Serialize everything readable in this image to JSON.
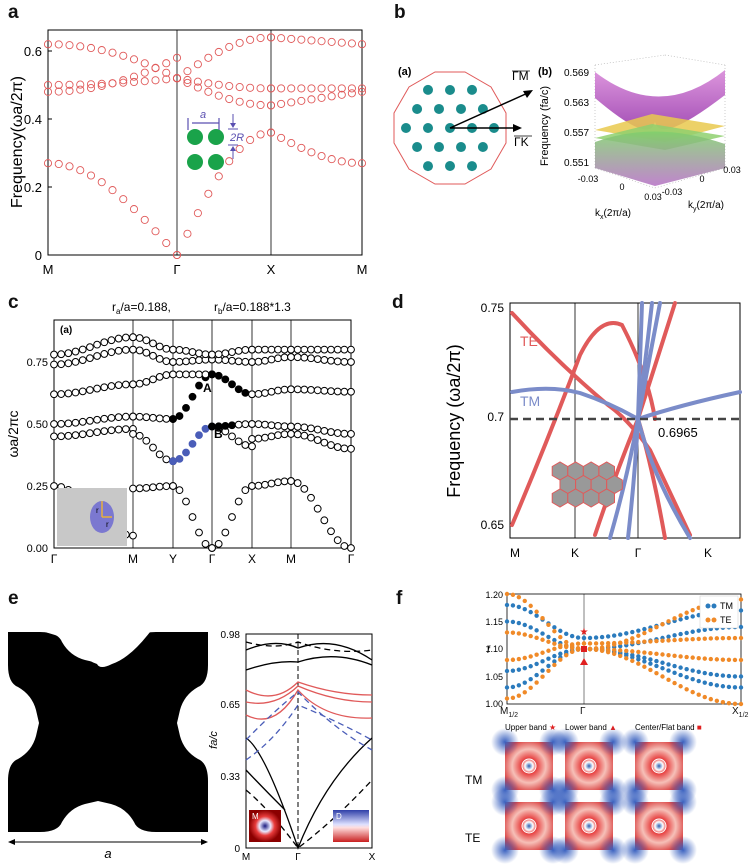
{
  "panels": {
    "a": {
      "letter": "a",
      "ylabel": "Frequency(ωa/2π)",
      "yticks": [
        "0",
        "0.2",
        "0.4",
        "0.6"
      ],
      "xticks": [
        "M",
        "Γ",
        "X",
        "M"
      ],
      "inset": {
        "a_label": "a",
        "r_label": "2R"
      }
    },
    "b": {
      "letter": "b",
      "sub_a": "(a)",
      "sub_b": "(b)",
      "arrow_gm": "ΓM",
      "arrow_gk": "ΓK",
      "zlabel": "Frequency (fa/c)",
      "zticks": [
        "0.569",
        "0.563",
        "0.557",
        "0.551"
      ],
      "kx_label": "k",
      "kx_sub": "x",
      "kx_unit": "(2π/a)",
      "ky_label": "k",
      "ky_sub": "y",
      "ky_unit": "(2π/a)",
      "kx_ticks": [
        "-0.03",
        "0",
        "0.03"
      ],
      "ky_ticks": [
        "-0.03",
        "0",
        "0.03"
      ]
    },
    "c": {
      "letter": "c",
      "ra_label": "r",
      "ra_sub": "a",
      "ra_value": "/a=0.188,",
      "rb_label": "r",
      "rb_sub": "b",
      "rb_value": "/a=0.188*1.3",
      "sub_a": "(a)",
      "ylabel": "ωa/2πc",
      "yticks": [
        "0.00",
        "0.25",
        "0.50",
        "0.75"
      ],
      "xticks": [
        "Γ",
        "M",
        "Y",
        "Γ",
        "X",
        "M",
        "Γ"
      ],
      "point_a": "A",
      "point_b": "B",
      "inset_ra": "r",
      "inset_rb": "r"
    },
    "d": {
      "letter": "d",
      "ylabel": "Frequency (ωa/2π)",
      "yticks": [
        "0.65",
        "0.7",
        "0.75"
      ],
      "xticks": [
        "M",
        "K",
        "Γ",
        "K"
      ],
      "te_label": "TE",
      "tm_label": "TM",
      "dirac_value": "0.6965"
    },
    "e": {
      "letter": "e",
      "a_label": "a",
      "ylabel": "fa/c",
      "yticks": [
        "0",
        "0.33",
        "0.65",
        "0.98"
      ],
      "xticks": [
        "M",
        "Γ",
        "X"
      ],
      "inset_m": "M",
      "inset_d": "D"
    },
    "f": {
      "letter": "f",
      "ylabel": "f",
      "yticks": [
        "1.00",
        "1.05",
        "1.10",
        "1.15",
        "1.20"
      ],
      "xticks": [
        "M",
        "Γ",
        "X"
      ],
      "xtick_subs": [
        "1/2",
        "",
        "1/2"
      ],
      "legend_tm": "TM",
      "legend_te": "TE",
      "col_upper": "Upper band",
      "col_lower": "Lower band",
      "col_center": "Center/Flat band",
      "row_tm": "TM",
      "row_te": "TE"
    }
  },
  "colors": {
    "red_band": "#e05a5a",
    "blue_band": "#7b8cc9",
    "green_rod": "#1aa34a",
    "teal_rod": "#1a8c8c",
    "blue_dot": "#2b7bbd",
    "orange_dot": "#f08a28",
    "purple_arrow": "#5a4fb0"
  }
}
